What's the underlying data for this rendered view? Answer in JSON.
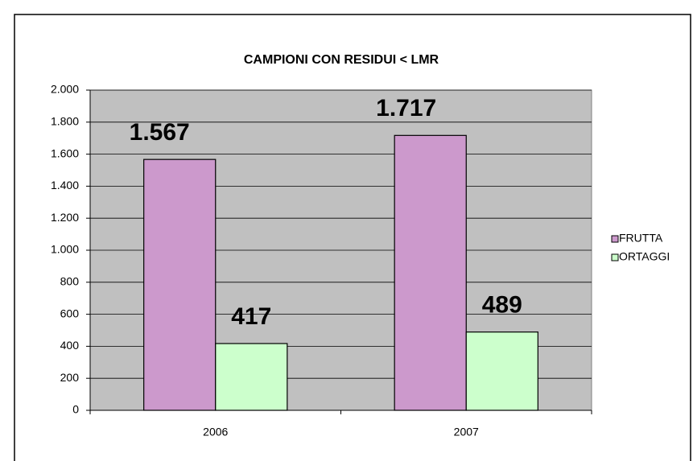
{
  "chart_data": {
    "type": "bar",
    "title": "CAMPIONI CON RESIDUI < LMR",
    "categories": [
      "2006",
      "2007"
    ],
    "series": [
      {
        "name": "FRUTTA",
        "color": "#cc99cc",
        "values": [
          1567,
          1717
        ],
        "value_labels": [
          "1.567",
          "1.717"
        ]
      },
      {
        "name": "ORTAGGI",
        "color": "#ccffcc",
        "values": [
          417,
          489
        ]
      }
    ],
    "ylim": [
      0,
      2000
    ],
    "yticks": [
      0,
      200,
      400,
      600,
      800,
      {
        "value": 1000,
        "label": "1.000"
      },
      {
        "value": 1200,
        "label": "1.200"
      },
      {
        "value": 1400,
        "label": "1.400"
      },
      {
        "value": 1600,
        "label": "1.600"
      },
      {
        "value": 1800,
        "label": "1.800"
      },
      {
        "value": 2000,
        "label": "2.000"
      }
    ],
    "grid": true,
    "legend": "right"
  }
}
